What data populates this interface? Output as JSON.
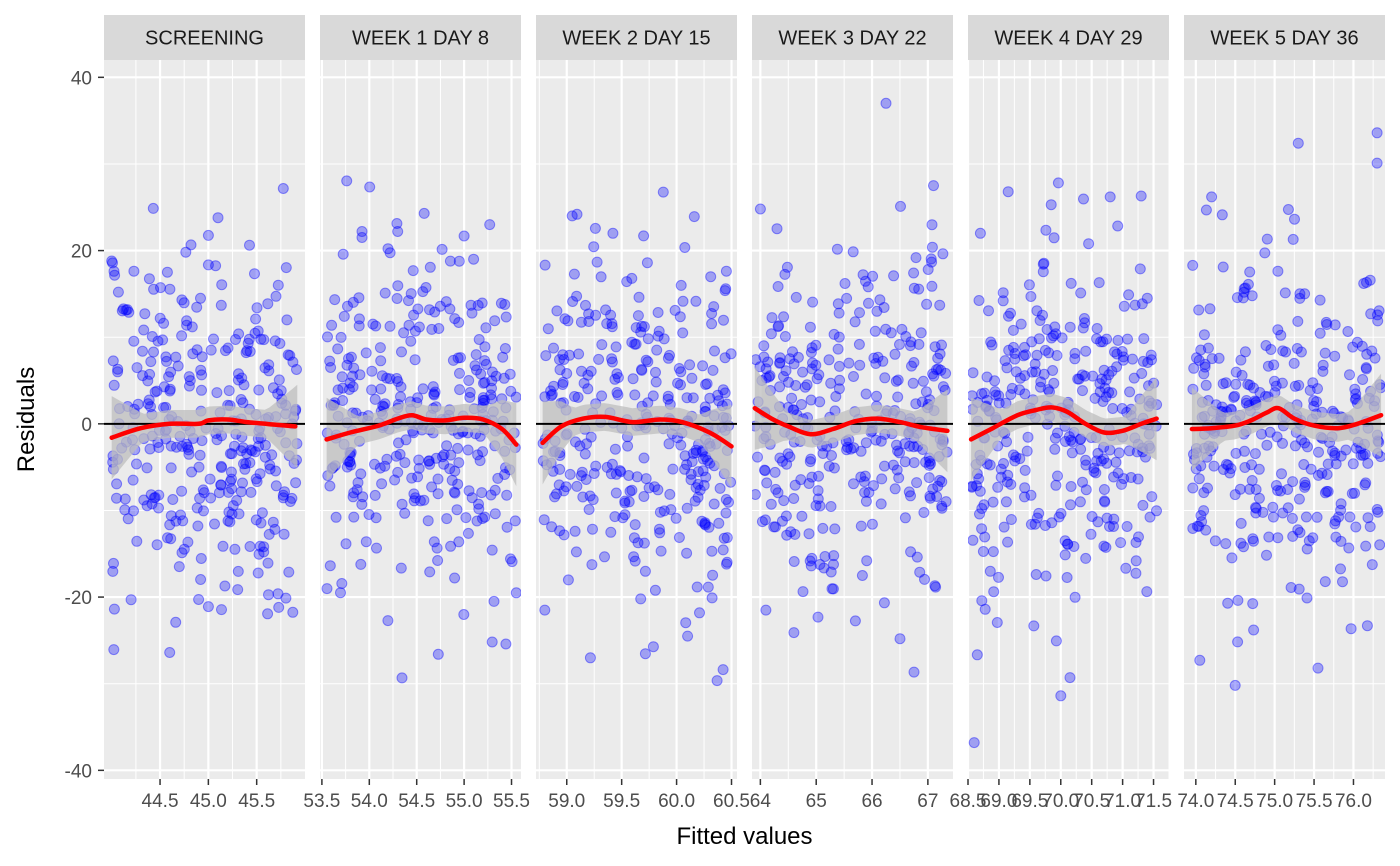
{
  "chart_data": {
    "type": "scatter",
    "facet_type": "residuals-vs-fitted",
    "xlabel": "Fitted values",
    "ylabel": "Residuals",
    "ylim": [
      -41,
      42
    ],
    "y_ticks": [
      -40,
      -20,
      0,
      20,
      40
    ],
    "y_tick_labels": [
      "-40",
      "-20",
      "0",
      "20",
      "40"
    ],
    "grid": true,
    "reference_line_y": 0,
    "colors": {
      "points": "#0000FF",
      "smooth": "#FF0000",
      "band": "#BDBDBD",
      "panel_bg": "#EBEBEB",
      "strip_bg": "#D9D9D9",
      "hline": "#000000"
    },
    "panels": [
      {
        "label": "SCREENING",
        "xlim": [
          43.92,
          46.0
        ],
        "x_ticks": [
          44.5,
          45.0,
          45.5
        ],
        "x_tick_labels": [
          "44.5",
          "45.0",
          "45.5"
        ],
        "x_range": [
          44.0,
          45.92
        ],
        "smooth": [
          [
            44.0,
            -1.6
          ],
          [
            44.3,
            -0.5
          ],
          [
            44.6,
            0.0
          ],
          [
            44.9,
            0.0
          ],
          [
            45.0,
            0.4
          ],
          [
            45.2,
            0.5
          ],
          [
            45.4,
            0.2
          ],
          [
            45.7,
            -0.1
          ],
          [
            45.9,
            -0.3
          ]
        ],
        "outliers": [
          [
            44.6,
            -26.4
          ],
          [
            45.1,
            23.8
          ],
          [
            45.0,
            -21.1
          ],
          [
            44.2,
            -20.3
          ],
          [
            44.0,
            18.8
          ]
        ]
      },
      {
        "label": "WEEK 1 DAY 8",
        "xlim": [
          53.48,
          55.6
        ],
        "x_ticks": [
          53.5,
          54.0,
          54.5,
          55.0,
          55.5
        ],
        "x_tick_labels": [
          "53.5",
          "54.0",
          "54.5",
          "55.0",
          "55.5"
        ],
        "x_range": [
          53.55,
          55.55
        ],
        "smooth": [
          [
            53.55,
            -1.8
          ],
          [
            53.8,
            -1.0
          ],
          [
            54.1,
            -0.2
          ],
          [
            54.3,
            0.6
          ],
          [
            54.45,
            1.0
          ],
          [
            54.6,
            0.5
          ],
          [
            54.8,
            0.4
          ],
          [
            55.0,
            0.7
          ],
          [
            55.2,
            0.5
          ],
          [
            55.4,
            -0.6
          ],
          [
            55.55,
            -2.4
          ]
        ],
        "outliers": [
          [
            54.3,
            22.2
          ],
          [
            55.55,
            -19.5
          ],
          [
            54.9,
            -17.8
          ],
          [
            55.1,
            19.0
          ]
        ]
      },
      {
        "label": "WEEK 2 DAY 15",
        "xlim": [
          58.72,
          60.55
        ],
        "x_ticks": [
          59.0,
          59.5,
          60.0,
          60.5
        ],
        "x_tick_labels": [
          "59.0",
          "59.5",
          "60.0",
          "60.5"
        ],
        "x_range": [
          58.78,
          60.5
        ],
        "smooth": [
          [
            58.78,
            -2.2
          ],
          [
            58.95,
            -0.3
          ],
          [
            59.15,
            0.6
          ],
          [
            59.35,
            0.8
          ],
          [
            59.6,
            0.2
          ],
          [
            59.85,
            0.5
          ],
          [
            60.05,
            0.2
          ],
          [
            60.3,
            -1.0
          ],
          [
            60.5,
            -2.6
          ]
        ],
        "outliers": [
          [
            59.7,
            21.7
          ],
          [
            60.1,
            -24.5
          ],
          [
            59.05,
            24.0
          ],
          [
            58.8,
            -21.5
          ]
        ]
      },
      {
        "label": "WEEK 3 DAY 22",
        "xlim": [
          63.85,
          67.45
        ],
        "x_ticks": [
          64,
          65,
          66,
          67
        ],
        "x_tick_labels": [
          "64",
          "65",
          "66",
          "67"
        ],
        "x_range": [
          63.9,
          67.35
        ],
        "smooth": [
          [
            63.9,
            1.8
          ],
          [
            64.2,
            0.6
          ],
          [
            64.5,
            -0.3
          ],
          [
            64.9,
            -1.2
          ],
          [
            65.3,
            -0.6
          ],
          [
            65.7,
            0.3
          ],
          [
            66.1,
            0.6
          ],
          [
            66.5,
            0.2
          ],
          [
            66.9,
            -0.4
          ],
          [
            67.35,
            -0.8
          ]
        ],
        "outliers": [
          [
            66.25,
            37.0
          ],
          [
            64.0,
            24.8
          ],
          [
            67.1,
            27.5
          ],
          [
            64.6,
            -24.1
          ],
          [
            66.5,
            -24.8
          ]
        ]
      },
      {
        "label": "WEEK 4 DAY 29",
        "xlim": [
          68.5,
          71.75
        ],
        "x_ticks": [
          68.5,
          69.0,
          69.5,
          70.0,
          70.5,
          71.0,
          71.5
        ],
        "x_tick_labels": [
          "68.5",
          "69.0",
          "69.5",
          "70.0",
          "70.5",
          "71.0",
          "71.5"
        ],
        "x_range": [
          68.55,
          71.55
        ],
        "smooth": [
          [
            68.55,
            -1.8
          ],
          [
            68.9,
            -0.5
          ],
          [
            69.3,
            1.0
          ],
          [
            69.6,
            1.6
          ],
          [
            69.85,
            1.9
          ],
          [
            70.1,
            1.4
          ],
          [
            70.4,
            0.0
          ],
          [
            70.7,
            -1.0
          ],
          [
            71.0,
            -0.8
          ],
          [
            71.3,
            0.0
          ],
          [
            71.55,
            0.6
          ]
        ],
        "outliers": [
          [
            68.6,
            -36.8
          ],
          [
            70.0,
            -31.4
          ],
          [
            70.15,
            -29.3
          ],
          [
            68.7,
            22.0
          ],
          [
            69.15,
            26.8
          ],
          [
            70.8,
            26.2
          ],
          [
            71.3,
            26.3
          ]
        ]
      },
      {
        "label": "WEEK 5 DAY 36",
        "xlim": [
          73.85,
          76.4
        ],
        "x_ticks": [
          74.0,
          74.5,
          75.0,
          75.5,
          76.0
        ],
        "x_tick_labels": [
          "74.0",
          "74.5",
          "75.0",
          "75.5",
          "76.0"
        ],
        "x_range": [
          73.95,
          76.35
        ],
        "smooth": [
          [
            73.95,
            -0.6
          ],
          [
            74.2,
            -0.5
          ],
          [
            74.5,
            -0.2
          ],
          [
            74.7,
            0.4
          ],
          [
            74.9,
            1.3
          ],
          [
            75.05,
            1.8
          ],
          [
            75.25,
            0.6
          ],
          [
            75.5,
            -0.2
          ],
          [
            75.8,
            -0.5
          ],
          [
            76.05,
            0.0
          ],
          [
            76.35,
            1.0
          ]
        ],
        "outliers": [
          [
            76.3,
            33.6
          ],
          [
            75.3,
            32.4
          ],
          [
            76.3,
            30.1
          ],
          [
            74.5,
            -30.2
          ],
          [
            74.05,
            -27.3
          ],
          [
            75.55,
            -28.2
          ],
          [
            74.2,
            26.2
          ]
        ]
      }
    ]
  }
}
